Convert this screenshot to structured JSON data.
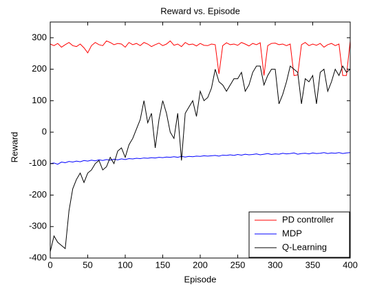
{
  "chart_data": {
    "type": "line",
    "title": "Reward vs. Episode",
    "x_label": "Episode",
    "y_label": "Reward",
    "x": [
      0,
      5,
      10,
      15,
      20,
      25,
      30,
      35,
      40,
      45,
      50,
      55,
      60,
      65,
      70,
      75,
      80,
      85,
      90,
      95,
      100,
      105,
      110,
      115,
      120,
      125,
      130,
      135,
      140,
      145,
      150,
      155,
      160,
      165,
      170,
      175,
      180,
      185,
      190,
      195,
      200,
      205,
      210,
      215,
      220,
      225,
      230,
      235,
      240,
      245,
      250,
      255,
      260,
      265,
      270,
      275,
      280,
      285,
      290,
      295,
      300,
      305,
      310,
      315,
      320,
      325,
      330,
      335,
      340,
      345,
      350,
      355,
      360,
      365,
      370,
      375,
      380,
      385,
      390,
      395,
      400
    ],
    "series": [
      {
        "name": "PD controller",
        "color": "#ff0000",
        "values": [
          280,
          275,
          282,
          270,
          278,
          285,
          275,
          272,
          280,
          268,
          252,
          275,
          285,
          278,
          275,
          290,
          285,
          278,
          282,
          280,
          270,
          285,
          278,
          282,
          275,
          285,
          280,
          272,
          278,
          283,
          275,
          280,
          290,
          276,
          280,
          272,
          285,
          278,
          280,
          274,
          282,
          276,
          275,
          280,
          278,
          185,
          275,
          284,
          278,
          280,
          276,
          285,
          280,
          274,
          282,
          278,
          284,
          180,
          275,
          282,
          283,
          278,
          280,
          275,
          280,
          180,
          182,
          278,
          285,
          275,
          280,
          276,
          282,
          270,
          278,
          282,
          275,
          280,
          180,
          180,
          290
        ]
      },
      {
        "name": "MDP",
        "color": "#0000ff",
        "values": [
          -100,
          -98,
          -102,
          -95,
          -97,
          -93,
          -95,
          -92,
          -94,
          -90,
          -92,
          -89,
          -91,
          -88,
          -90,
          -87,
          -89,
          -86,
          -88,
          -85,
          -87,
          -84,
          -85,
          -83,
          -84,
          -82,
          -83,
          -81,
          -82,
          -80,
          -81,
          -79,
          -80,
          -78,
          -80,
          -77,
          -79,
          -77,
          -78,
          -76,
          -77,
          -75,
          -76,
          -75,
          -74,
          -76,
          -73,
          -74,
          -72,
          -74,
          -71,
          -73,
          -70,
          -72,
          -71,
          -69,
          -72,
          -70,
          -68,
          -71,
          -69,
          -70,
          -67,
          -69,
          -68,
          -66,
          -70,
          -68,
          -67,
          -69,
          -66,
          -68,
          -67,
          -65,
          -68,
          -66,
          -67,
          -65,
          -68,
          -66,
          -65
        ]
      },
      {
        "name": "Q-Learning",
        "color": "#000000",
        "values": [
          -380,
          -330,
          -350,
          -360,
          -370,
          -250,
          -180,
          -150,
          -130,
          -160,
          -130,
          -120,
          -100,
          -90,
          -120,
          -110,
          -80,
          -100,
          -60,
          -50,
          -80,
          -40,
          -20,
          10,
          40,
          100,
          30,
          60,
          -50,
          40,
          100,
          60,
          0,
          -20,
          60,
          -90,
          60,
          80,
          100,
          50,
          130,
          100,
          110,
          140,
          200,
          160,
          150,
          130,
          150,
          170,
          170,
          190,
          130,
          150,
          190,
          210,
          210,
          150,
          180,
          200,
          200,
          90,
          120,
          160,
          210,
          200,
          190,
          90,
          170,
          160,
          180,
          90,
          190,
          200,
          130,
          160,
          200,
          180,
          210,
          190,
          200
        ]
      }
    ],
    "xlim": [
      0,
      400
    ],
    "xticks": [
      0,
      50,
      100,
      150,
      200,
      250,
      300,
      350,
      400
    ],
    "ylim": [
      -400,
      350
    ],
    "yticks": [
      -400,
      -300,
      -200,
      -100,
      0,
      100,
      200,
      300
    ],
    "legend": "lower right"
  }
}
